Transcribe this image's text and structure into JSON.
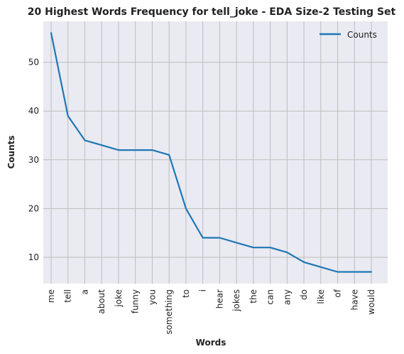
{
  "chart_data": {
    "type": "line",
    "title": "20 Highest Words Frequency for tell_joke - EDA Size-2 Testing Set",
    "xlabel": "Words",
    "ylabel": "Counts",
    "categories": [
      "me",
      "tell",
      "a",
      "about",
      "joke",
      "funny",
      "you",
      "something",
      "to",
      "i",
      "hear",
      "jokes",
      "the",
      "can",
      "any",
      "do",
      "like",
      "of",
      "have",
      "would"
    ],
    "series": [
      {
        "name": "Counts",
        "color": "#1f77b4",
        "values": [
          56,
          39,
          34,
          33,
          32,
          32,
          32,
          31,
          20,
          14,
          14,
          13,
          12,
          12,
          11,
          9,
          8,
          7,
          7,
          7
        ]
      }
    ],
    "ylim": [
      4.6,
      58.4
    ],
    "yticks": [
      10,
      20,
      30,
      40,
      50
    ],
    "grid": true,
    "legend_position": "top-right",
    "colors": {
      "plot_bg": "#eaeaf2",
      "grid": "#bdbdbd"
    }
  }
}
